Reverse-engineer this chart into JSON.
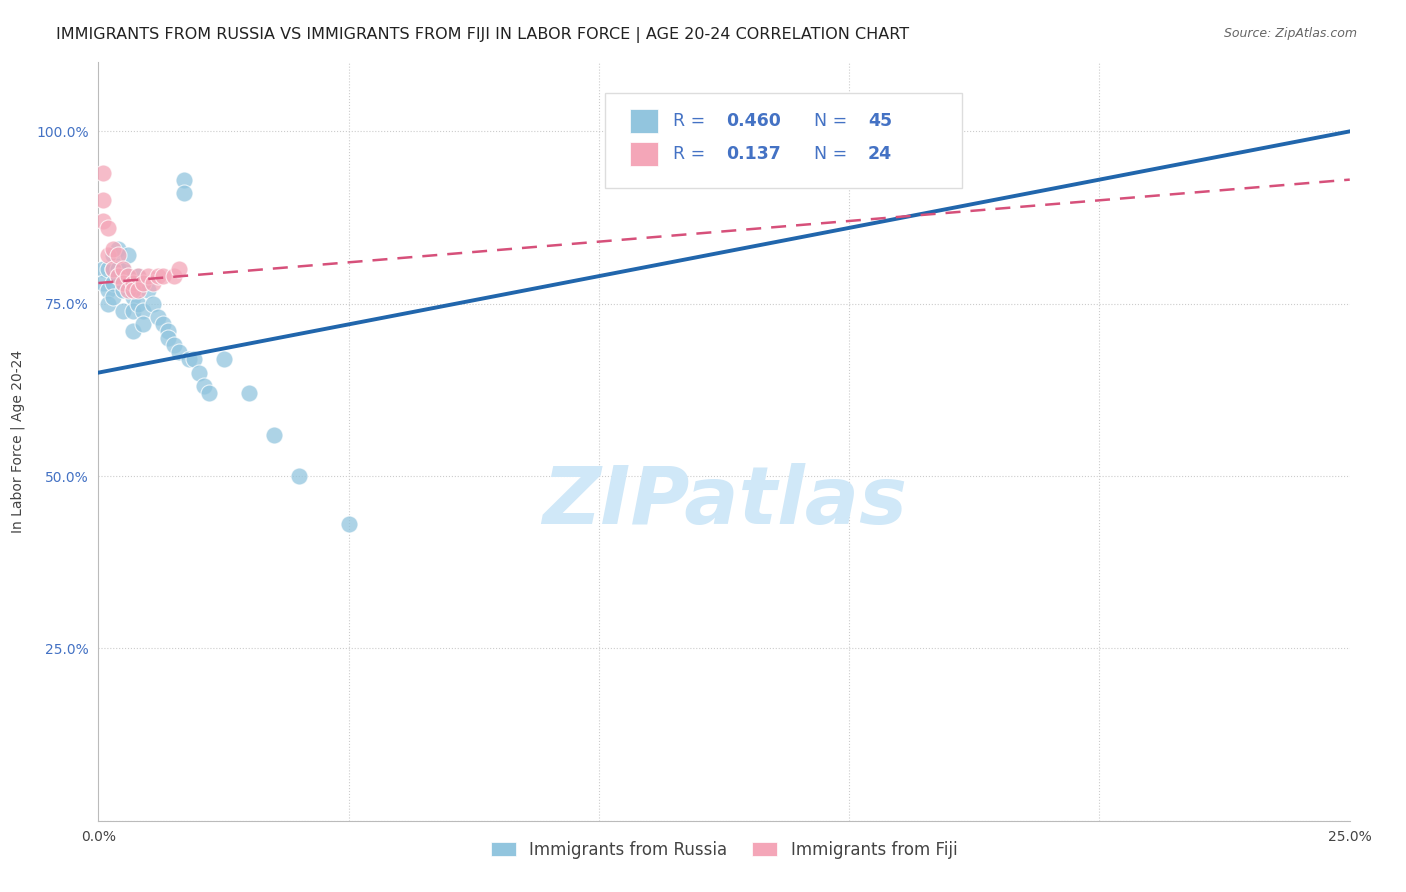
{
  "title": "IMMIGRANTS FROM RUSSIA VS IMMIGRANTS FROM FIJI IN LABOR FORCE | AGE 20-24 CORRELATION CHART",
  "source": "Source: ZipAtlas.com",
  "ylabel": "In Labor Force | Age 20-24",
  "xlim": [
    0.0,
    0.25
  ],
  "ylim": [
    0.0,
    1.1
  ],
  "xticks": [
    0.0,
    0.05,
    0.1,
    0.15,
    0.2,
    0.25
  ],
  "xticklabels": [
    "0.0%",
    "",
    "",
    "",
    "",
    "25.0%"
  ],
  "yticks": [
    0.0,
    0.25,
    0.5,
    0.75,
    1.0
  ],
  "yticklabels": [
    "",
    "25.0%",
    "50.0%",
    "75.0%",
    "100.0%"
  ],
  "russia_R": 0.46,
  "russia_N": 45,
  "fiji_R": 0.137,
  "fiji_N": 24,
  "russia_color": "#92c5de",
  "fiji_color": "#f4a6b8",
  "russia_line_color": "#2166ac",
  "fiji_line_color": "#d6507a",
  "russia_dots": [
    [
      0.001,
      0.8
    ],
    [
      0.001,
      0.78
    ],
    [
      0.002,
      0.8
    ],
    [
      0.002,
      0.77
    ],
    [
      0.002,
      0.75
    ],
    [
      0.003,
      0.82
    ],
    [
      0.003,
      0.8
    ],
    [
      0.003,
      0.78
    ],
    [
      0.003,
      0.76
    ],
    [
      0.004,
      0.83
    ],
    [
      0.004,
      0.8
    ],
    [
      0.004,
      0.79
    ],
    [
      0.005,
      0.8
    ],
    [
      0.005,
      0.77
    ],
    [
      0.005,
      0.74
    ],
    [
      0.006,
      0.82
    ],
    [
      0.006,
      0.79
    ],
    [
      0.007,
      0.76
    ],
    [
      0.007,
      0.74
    ],
    [
      0.007,
      0.71
    ],
    [
      0.008,
      0.79
    ],
    [
      0.008,
      0.75
    ],
    [
      0.009,
      0.74
    ],
    [
      0.009,
      0.72
    ],
    [
      0.01,
      0.77
    ],
    [
      0.011,
      0.75
    ],
    [
      0.012,
      0.73
    ],
    [
      0.013,
      0.72
    ],
    [
      0.014,
      0.71
    ],
    [
      0.014,
      0.7
    ],
    [
      0.015,
      0.69
    ],
    [
      0.016,
      0.68
    ],
    [
      0.017,
      0.93
    ],
    [
      0.017,
      0.91
    ],
    [
      0.018,
      0.67
    ],
    [
      0.019,
      0.67
    ],
    [
      0.02,
      0.65
    ],
    [
      0.021,
      0.63
    ],
    [
      0.022,
      0.62
    ],
    [
      0.025,
      0.67
    ],
    [
      0.03,
      0.62
    ],
    [
      0.035,
      0.56
    ],
    [
      0.04,
      0.5
    ],
    [
      0.05,
      0.43
    ],
    [
      0.17,
      1.0
    ]
  ],
  "fiji_dots": [
    [
      0.001,
      0.94
    ],
    [
      0.001,
      0.9
    ],
    [
      0.001,
      0.87
    ],
    [
      0.002,
      0.86
    ],
    [
      0.002,
      0.82
    ],
    [
      0.003,
      0.83
    ],
    [
      0.003,
      0.8
    ],
    [
      0.004,
      0.82
    ],
    [
      0.004,
      0.79
    ],
    [
      0.005,
      0.8
    ],
    [
      0.005,
      0.78
    ],
    [
      0.006,
      0.79
    ],
    [
      0.006,
      0.77
    ],
    [
      0.007,
      0.78
    ],
    [
      0.007,
      0.77
    ],
    [
      0.008,
      0.79
    ],
    [
      0.008,
      0.77
    ],
    [
      0.009,
      0.78
    ],
    [
      0.01,
      0.79
    ],
    [
      0.011,
      0.78
    ],
    [
      0.012,
      0.79
    ],
    [
      0.013,
      0.79
    ],
    [
      0.015,
      0.79
    ],
    [
      0.016,
      0.8
    ]
  ],
  "background_color": "#ffffff",
  "grid_color": "#cccccc",
  "title_fontsize": 11.5,
  "axis_label_fontsize": 10,
  "tick_fontsize": 10,
  "source_fontsize": 9,
  "watermark_text": "ZIPatlas",
  "watermark_color": "#d0e8f8",
  "watermark_fontsize": 58,
  "russia_trendline": [
    0.0,
    0.65,
    0.25,
    1.0
  ],
  "fiji_trendline": [
    0.0,
    0.78,
    0.25,
    0.93
  ]
}
